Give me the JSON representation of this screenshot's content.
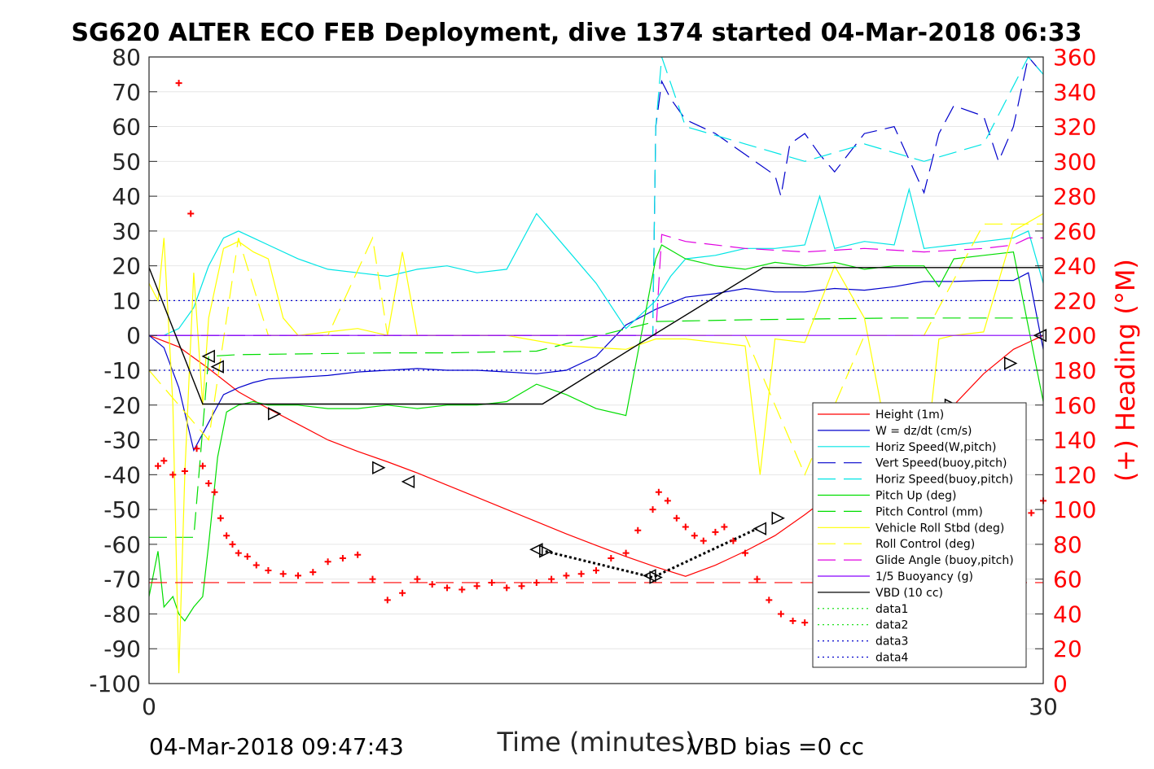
{
  "chart_data": {
    "type": "line",
    "title": "SG620 ALTER ECO FEB Deployment, dive 1374 started 04-Mar-2018 06:33",
    "xlabel": "Time (minutes)",
    "ylabel": "",
    "y2label": "(+) Heading (°M)",
    "xlim": [
      0,
      30
    ],
    "ylim": [
      -100,
      80
    ],
    "y2lim": [
      0,
      360
    ],
    "xticks": [
      "0",
      "30"
    ],
    "yticks": [
      "80",
      "70",
      "60",
      "50",
      "40",
      "30",
      "20",
      "10",
      "0",
      "-10",
      "-20",
      "-30",
      "-40",
      "-50",
      "-60",
      "-70",
      "-80",
      "-90",
      "-100"
    ],
    "y2ticks": [
      "360",
      "340",
      "320",
      "300",
      "280",
      "260",
      "240",
      "220",
      "200",
      "180",
      "160",
      "140",
      "120",
      "100",
      "80",
      "60",
      "40",
      "20",
      "0"
    ],
    "grid": true,
    "legend_position": "lower-right",
    "footer_left": "04-Mar-2018 09:47:43",
    "footer_right": "VBD bias =0 cc",
    "colors": {
      "height": "#ff0000",
      "w": "#0000cc",
      "horiz_speed": "#00e5e5",
      "vert_speed_buoy": "#0000cc",
      "horiz_speed_buoy": "#00e5e5",
      "pitch_up": "#00dd00",
      "pitch_control": "#00dd00",
      "roll": "#ffff00",
      "roll_control": "#ffff00",
      "glide_angle": "#e000e0",
      "buoyancy": "#8800ff",
      "vbd": "#000000",
      "heading": "#ff0000"
    },
    "series": [
      {
        "name": "Height (1m)",
        "key": "height",
        "style": "solid",
        "x": [
          0,
          1,
          2,
          3,
          4,
          5,
          6,
          7,
          8,
          9,
          10,
          11,
          12,
          13,
          14,
          15,
          16,
          17,
          18,
          19,
          20,
          21,
          22,
          23,
          24,
          25,
          26,
          27,
          28,
          29,
          30
        ],
        "y": [
          0,
          -3.3,
          -9.5,
          -16.2,
          -21,
          -25.5,
          -30,
          -33.3,
          -36.3,
          -39.5,
          -43,
          -46.5,
          -50,
          -53.5,
          -57,
          -60.3,
          -63.5,
          -66.5,
          -69.2,
          -66,
          -62,
          -57.5,
          -51.5,
          -45,
          -39,
          -33.8,
          -27.5,
          -20,
          -11,
          -4,
          0
        ]
      },
      {
        "name": "W = dz/dt (cm/s)",
        "key": "w",
        "style": "solid",
        "x": [
          0,
          0.5,
          1,
          1.5,
          2,
          2.5,
          3,
          3.5,
          4,
          5,
          6,
          7,
          8,
          9,
          10,
          11,
          12,
          13,
          14,
          15,
          16,
          17,
          18,
          19,
          20,
          21,
          22,
          23,
          24,
          25,
          26,
          27,
          28,
          29,
          29.5,
          30
        ],
        "y": [
          0,
          -3.5,
          -15,
          -33,
          -25,
          -17,
          -15,
          -13.5,
          -12.5,
          -12,
          -11.5,
          -10.5,
          -10,
          -9.5,
          -10,
          -10,
          -10.5,
          -11,
          -10,
          -6,
          3,
          7.5,
          11,
          12,
          13.5,
          12.5,
          12.5,
          13.5,
          13,
          14,
          15.5,
          15.5,
          15.8,
          15.8,
          18,
          -4
        ]
      },
      {
        "name": "Horiz Speed(W,pitch)",
        "key": "horiz_speed",
        "style": "solid",
        "x": [
          0,
          0.5,
          1,
          1.5,
          2,
          2.5,
          3,
          3.5,
          4,
          5,
          6,
          7,
          8,
          9,
          10,
          11,
          12,
          13,
          14,
          15,
          16,
          17,
          17.5,
          18,
          19,
          20,
          21,
          22,
          22.5,
          23,
          24,
          25,
          25.5,
          26,
          27,
          28,
          29,
          29.5,
          30
        ],
        "y": [
          0,
          0,
          2,
          8,
          20,
          28,
          30,
          28,
          26,
          22,
          19,
          18,
          17,
          19,
          20,
          18,
          19,
          35,
          25,
          15,
          2,
          10,
          17,
          22,
          23,
          25,
          25,
          26,
          40,
          25,
          27,
          26,
          42,
          25,
          26,
          27,
          28,
          30,
          15
        ]
      },
      {
        "name": "Vert Speed(buoy,pitch)",
        "key": "vert_speed_buoy",
        "style": "dash",
        "x": [
          0,
          5,
          10,
          15,
          16.9,
          17,
          17.2,
          17.5,
          18,
          19,
          20,
          21,
          21.2,
          21.5,
          22,
          22.5,
          23,
          24,
          25,
          26,
          26.5,
          27,
          28,
          28.5,
          29,
          29.5,
          30
        ],
        "y": [
          0,
          0,
          0,
          0,
          0,
          60,
          73,
          68,
          62,
          58,
          52,
          46,
          40,
          55,
          58,
          52,
          47,
          58,
          60,
          41,
          58,
          66,
          63,
          50,
          60,
          80,
          75
        ]
      },
      {
        "name": "Horiz Speed(buoy,pitch)",
        "key": "horiz_speed_buoy",
        "style": "dash",
        "x": [
          0,
          16.9,
          17,
          17.2,
          18,
          20,
          22,
          24,
          26,
          28,
          29.5,
          30
        ],
        "y": [
          0,
          0,
          60,
          80,
          60,
          55,
          50,
          55,
          50,
          55,
          80,
          75
        ]
      },
      {
        "name": "Pitch Up (deg)",
        "key": "pitch_up",
        "style": "solid",
        "x": [
          0,
          0.3,
          0.5,
          0.8,
          1,
          1.2,
          1.5,
          1.8,
          2,
          2.3,
          2.6,
          3,
          3.5,
          4,
          5,
          6,
          7,
          8,
          9,
          10,
          11,
          12,
          13,
          14,
          15,
          16,
          17,
          17.2,
          18,
          19,
          20,
          21,
          22,
          23,
          24,
          25,
          26,
          26.5,
          27,
          28,
          29,
          30
        ],
        "y": [
          -75,
          -62,
          -78,
          -75,
          -80,
          -82,
          -78,
          -75,
          -60,
          -35,
          -22,
          -20,
          -19,
          -20,
          -20,
          -21,
          -21,
          -20,
          -21,
          -20,
          -20,
          -19,
          -14,
          -17,
          -21,
          -23,
          22,
          26,
          22,
          20,
          19,
          21,
          20,
          21,
          19,
          20,
          20,
          14,
          22,
          23,
          24,
          -19
        ]
      },
      {
        "name": "Pitch Control (mm)",
        "key": "pitch_control",
        "style": "dash",
        "x": [
          0,
          1.2,
          1.5,
          2,
          3,
          8,
          10,
          13,
          17,
          20,
          25,
          30
        ],
        "y": [
          -58,
          -58,
          -58,
          -6,
          -5.5,
          -5,
          -5,
          -4.5,
          4,
          4.5,
          5,
          5
        ]
      },
      {
        "name": "Vehicle Roll Stbd (deg)",
        "key": "roll",
        "style": "solid",
        "x": [
          0,
          0.3,
          0.5,
          0.8,
          1,
          1.2,
          1.5,
          1.8,
          2,
          2.5,
          3,
          3.5,
          4,
          4.5,
          5,
          6,
          7,
          8,
          8.5,
          9,
          10,
          12,
          14,
          16,
          17,
          18,
          19,
          20,
          20.5,
          21,
          22,
          23,
          24,
          25,
          26,
          26.5,
          27,
          28,
          29,
          30
        ],
        "y": [
          15,
          10,
          28,
          -20,
          -97,
          -40,
          18,
          -20,
          5,
          25,
          27,
          24,
          22,
          5,
          0,
          1,
          2,
          0,
          24,
          0,
          0,
          0,
          -3,
          -4,
          -1,
          -1,
          -2,
          -3,
          -40,
          -1,
          -2,
          20,
          5,
          -40,
          -40,
          -1,
          0,
          1,
          30,
          35
        ]
      },
      {
        "name": "Roll Control (deg)",
        "key": "roll_control",
        "style": "dash",
        "x": [
          0,
          1,
          2,
          3,
          4,
          6,
          7.5,
          8,
          10,
          17,
          20,
          22,
          24,
          26,
          28,
          30
        ],
        "y": [
          -10,
          -20,
          -30,
          28,
          0,
          0,
          28,
          0,
          0,
          0,
          0,
          -40,
          0,
          0,
          32,
          32
        ]
      },
      {
        "name": "Glide Angle (buoy,pitch)",
        "key": "glide_angle",
        "style": "dash",
        "x": [
          0,
          17,
          17.2,
          18,
          20,
          22,
          24,
          26,
          28,
          29,
          29.5,
          30
        ],
        "y": [
          0,
          0,
          29,
          27,
          25,
          24,
          25,
          24,
          25,
          26,
          28,
          28
        ]
      },
      {
        "name": "1/5 Buoyancy (g)",
        "key": "buoyancy",
        "style": "solid",
        "x": [
          0,
          17,
          29.5,
          30
        ],
        "y": [
          0,
          0,
          0,
          0
        ]
      },
      {
        "name": "VBD (10 cc)",
        "key": "vbd",
        "style": "solid",
        "x": [
          0,
          1.8,
          13.2,
          16.9,
          20.6,
          30
        ],
        "y": [
          19.5,
          -19.7,
          -19.7,
          0,
          19.5,
          19.5
        ]
      },
      {
        "name": "data1",
        "key": "data1",
        "style": "dot",
        "x": [],
        "y": []
      },
      {
        "name": "data2",
        "key": "data2",
        "style": "dot",
        "x": [],
        "y": []
      },
      {
        "name": "data3",
        "key": "data3",
        "style": "dot",
        "x": [
          0,
          30
        ],
        "y": [
          10,
          10
        ]
      },
      {
        "name": "data4",
        "key": "data4",
        "style": "dot",
        "x": [
          0,
          30
        ],
        "y": [
          -10,
          -10
        ]
      }
    ],
    "heading_mean_line": 58,
    "heading_points": {
      "x": [
        0.3,
        0.5,
        0.8,
        1.0,
        1.2,
        1.4,
        1.6,
        1.8,
        2.0,
        2.2,
        2.4,
        2.6,
        2.8,
        3.0,
        3.3,
        3.6,
        4.0,
        4.5,
        5.0,
        5.5,
        6.0,
        6.5,
        7.0,
        7.5,
        8.0,
        8.5,
        9.0,
        9.5,
        10.0,
        10.5,
        11.0,
        11.5,
        12.0,
        12.5,
        13.0,
        13.5,
        14.0,
        14.5,
        15.0,
        15.5,
        16.0,
        16.4,
        16.9,
        17.1,
        17.4,
        17.7,
        18.0,
        18.3,
        18.6,
        19.0,
        19.3,
        19.6,
        20.0,
        20.4,
        20.8,
        21.2,
        21.6,
        22.0,
        22.4,
        22.8,
        23.2,
        23.6,
        24.0,
        24.4,
        24.8,
        25.2,
        25.6,
        26.0,
        26.3,
        26.6,
        27.0,
        27.4,
        27.8,
        28.2,
        28.6,
        29.0,
        29.3,
        29.6,
        30.0
      ],
      "y": [
        125,
        128,
        120,
        345,
        122,
        270,
        135,
        125,
        115,
        110,
        95,
        85,
        80,
        75,
        73,
        68,
        65,
        63,
        62,
        64,
        70,
        72,
        74,
        60,
        48,
        52,
        60,
        57,
        55,
        54,
        56,
        58,
        55,
        56,
        58,
        60,
        62,
        63,
        65,
        72,
        75,
        88,
        100,
        110,
        105,
        95,
        90,
        85,
        82,
        87,
        90,
        82,
        75,
        60,
        48,
        40,
        36,
        35,
        42,
        45,
        34,
        40,
        55,
        68,
        85,
        98,
        108,
        100,
        80,
        65,
        50,
        44,
        42,
        34,
        26,
        40,
        65,
        98,
        105
      ]
    },
    "dive_markers": [
      {
        "x": 2.0,
        "y": -6,
        "dir": "left"
      },
      {
        "x": 2.3,
        "y": -9,
        "dir": "left"
      },
      {
        "x": 4.2,
        "y": -22.5,
        "dir": "right"
      },
      {
        "x": 7.7,
        "y": -38,
        "dir": "right"
      },
      {
        "x": 8.7,
        "y": -42,
        "dir": "left"
      },
      {
        "x": 13.0,
        "y": -61.5,
        "dir": "left"
      },
      {
        "x": 13.3,
        "y": -62,
        "dir": "right"
      },
      {
        "x": 16.8,
        "y": -69,
        "dir": "left"
      },
      {
        "x": 17.0,
        "y": -69.5,
        "dir": "right"
      },
      {
        "x": 20.5,
        "y": -55.5,
        "dir": "left"
      },
      {
        "x": 21.1,
        "y": -52.5,
        "dir": "right"
      },
      {
        "x": 23.3,
        "y": -40,
        "dir": "left"
      },
      {
        "x": 24.0,
        "y": -36,
        "dir": "right"
      },
      {
        "x": 25.9,
        "y": -24.5,
        "dir": "left"
      },
      {
        "x": 26.9,
        "y": -20,
        "dir": "right"
      },
      {
        "x": 28.9,
        "y": -8,
        "dir": "right"
      },
      {
        "x": 29.9,
        "y": 0,
        "dir": "left"
      }
    ],
    "bottom_segment": {
      "x": [
        13.3,
        16.9,
        20.4
      ],
      "y": [
        -62,
        -69.5,
        -55.5
      ]
    }
  }
}
